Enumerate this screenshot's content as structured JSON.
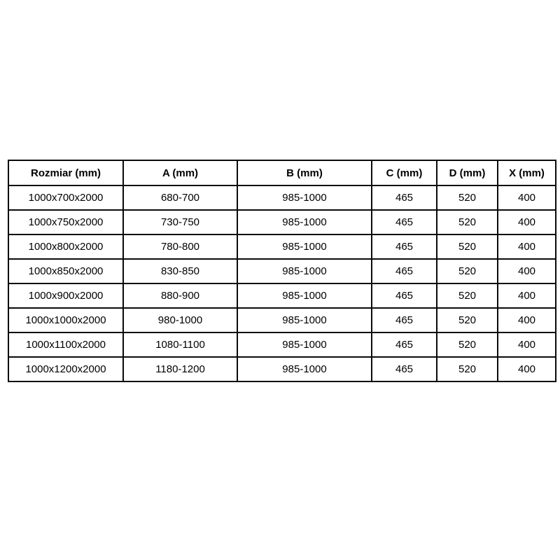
{
  "page": {
    "background_color": "#ffffff",
    "border_color": "#0a0a0a",
    "text_color": "#000000"
  },
  "table": {
    "columns": [
      "Rozmiar (mm)",
      "A (mm)",
      "B (mm)",
      "C (mm)",
      "D (mm)",
      "X (mm)"
    ],
    "rows": [
      [
        "1000x700x2000",
        "680-700",
        "985-1000",
        "465",
        "520",
        "400"
      ],
      [
        "1000x750x2000",
        "730-750",
        "985-1000",
        "465",
        "520",
        "400"
      ],
      [
        "1000x800x2000",
        "780-800",
        "985-1000",
        "465",
        "520",
        "400"
      ],
      [
        "1000x850x2000",
        "830-850",
        "985-1000",
        "465",
        "520",
        "400"
      ],
      [
        "1000x900x2000",
        "880-900",
        "985-1000",
        "465",
        "520",
        "400"
      ],
      [
        "1000x1000x2000",
        "980-1000",
        "985-1000",
        "465",
        "520",
        "400"
      ],
      [
        "1000x1100x2000",
        "1080-1100",
        "985-1000",
        "465",
        "520",
        "400"
      ],
      [
        "1000x1200x2000",
        "1180-1200",
        "985-1000",
        "465",
        "520",
        "400"
      ]
    ]
  },
  "chart_data": {
    "type": "table",
    "title": "",
    "columns": [
      "Rozmiar (mm)",
      "A (mm)",
      "B (mm)",
      "C (mm)",
      "D (mm)",
      "X (mm)"
    ],
    "rows": [
      [
        "1000x700x2000",
        "680-700",
        "985-1000",
        "465",
        "520",
        "400"
      ],
      [
        "1000x750x2000",
        "730-750",
        "985-1000",
        "465",
        "520",
        "400"
      ],
      [
        "1000x800x2000",
        "780-800",
        "985-1000",
        "465",
        "520",
        "400"
      ],
      [
        "1000x850x2000",
        "830-850",
        "985-1000",
        "465",
        "520",
        "400"
      ],
      [
        "1000x900x2000",
        "880-900",
        "985-1000",
        "465",
        "520",
        "400"
      ],
      [
        "1000x1000x2000",
        "980-1000",
        "985-1000",
        "465",
        "520",
        "400"
      ],
      [
        "1000x1100x2000",
        "1080-1100",
        "985-1000",
        "465",
        "520",
        "400"
      ],
      [
        "1000x1200x2000",
        "1180-1200",
        "985-1000",
        "465",
        "520",
        "400"
      ]
    ]
  }
}
